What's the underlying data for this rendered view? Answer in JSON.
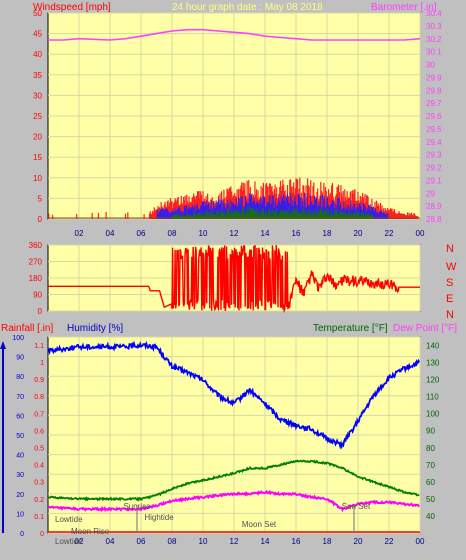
{
  "header": {
    "wind_label": "Windspeed [mph]",
    "title": "24 hour graph date : May 08 2018",
    "baro_label": "Barometer [.in]"
  },
  "middle": {
    "compass": [
      "N",
      "W",
      "S",
      "E",
      "N"
    ]
  },
  "bottom": {
    "rain_label": "Rainfall [.in]",
    "humidity_label": "Humidity [%]",
    "temp_label": "Temperature [°F]",
    "dew_label": "Dew Point [°F]"
  },
  "colors": {
    "background": "#c0c0c0",
    "plot_bg": "#ffffa8",
    "wind_gust": "#ff2020",
    "wind_avg": "#2020ff",
    "wind_low": "#008000",
    "barometer": "#ff40ff",
    "wind_dir": "#ff0000",
    "humidity": "#0000ff",
    "temperature": "#008000",
    "dewpoint": "#ff00ff",
    "title": "#ffff80",
    "header_red": "#ff0000",
    "bottom_blue": "#0000cc",
    "bottom_green": "#006600"
  },
  "chart_data": [
    {
      "type": "area",
      "x_ticks": [
        "02",
        "04",
        "06",
        "08",
        "10",
        "12",
        "14",
        "16",
        "18",
        "20",
        "22",
        "00"
      ],
      "left_axis": {
        "ylim": [
          0,
          50
        ],
        "ticks": [
          "0",
          "5",
          "10",
          "15",
          "20",
          "25",
          "30",
          "35",
          "40",
          "45",
          "50"
        ]
      },
      "right_axis": {
        "ylim": [
          28.8,
          30.4
        ],
        "ticks": [
          "28.8",
          "28.9",
          "29",
          "29.1",
          "29.2",
          "29.3",
          "29.4",
          "29.5",
          "29.6",
          "29.7",
          "29.8",
          "29.9",
          "30",
          "30.1",
          "30.2",
          "30.3",
          "30.4"
        ]
      },
      "series": [
        {
          "values": [
            [
              0,
              0.5
            ],
            [
              1.5,
              0.3
            ],
            [
              3,
              0.2
            ],
            [
              5,
              0.6
            ],
            [
              6.5,
              1.5
            ],
            [
              7.5,
              4
            ],
            [
              8.5,
              5
            ],
            [
              10,
              6
            ],
            [
              11,
              5.5
            ],
            [
              12,
              7
            ],
            [
              13,
              8
            ],
            [
              14,
              7.5
            ],
            [
              15,
              8
            ],
            [
              16,
              9
            ],
            [
              17,
              8
            ],
            [
              18,
              7.5
            ],
            [
              19,
              7
            ],
            [
              20,
              6
            ],
            [
              21,
              4
            ],
            [
              22,
              2.5
            ],
            [
              23,
              1.5
            ],
            [
              24,
              1
            ]
          ]
        },
        {
          "values": [
            [
              7,
              2
            ],
            [
              9,
              3
            ],
            [
              10,
              3.5
            ],
            [
              12,
              4.5
            ],
            [
              13,
              5
            ],
            [
              14,
              4.5
            ],
            [
              15,
              5
            ],
            [
              16,
              5.5
            ],
            [
              17,
              5
            ],
            [
              18,
              4.5
            ],
            [
              19,
              4
            ],
            [
              20,
              3.5
            ],
            [
              21,
              2.5
            ],
            [
              22,
              1.5
            ]
          ]
        },
        {
          "values": [
            [
              8,
              1
            ],
            [
              10,
              1.5
            ],
            [
              12,
              2
            ],
            [
              13,
              2.5
            ],
            [
              14,
              2
            ],
            [
              16,
              2.5
            ],
            [
              17,
              2
            ],
            [
              18,
              2
            ],
            [
              20,
              1.5
            ],
            [
              21,
              1
            ]
          ]
        },
        {
          "values": [
            [
              0,
              30.19
            ],
            [
              1,
              30.19
            ],
            [
              2,
              30.2
            ],
            [
              4,
              30.19
            ],
            [
              5,
              30.2
            ],
            [
              6,
              30.22
            ],
            [
              7,
              30.24
            ],
            [
              8,
              30.26
            ],
            [
              9,
              30.27
            ],
            [
              10,
              30.27
            ],
            [
              11,
              30.26
            ],
            [
              12,
              30.25
            ],
            [
              13,
              30.24
            ],
            [
              14,
              30.22
            ],
            [
              15,
              30.21
            ],
            [
              16,
              30.2
            ],
            [
              17,
              30.19
            ],
            [
              18,
              30.19
            ],
            [
              19,
              30.19
            ],
            [
              20,
              30.19
            ],
            [
              21,
              30.19
            ],
            [
              22,
              30.19
            ],
            [
              23,
              30.19
            ],
            [
              24,
              30.2
            ]
          ]
        }
      ]
    },
    {
      "type": "line",
      "left_axis": {
        "ylim": [
          0,
          360
        ],
        "ticks": [
          "0",
          "90",
          "180",
          "270",
          "360"
        ]
      },
      "series": [
        {
          "values": [
            [
              0,
              135
            ],
            [
              6.5,
              135
            ],
            [
              6.6,
              110
            ],
            [
              7.2,
              110
            ],
            [
              7.3,
              80
            ],
            [
              7.5,
              20
            ],
            [
              8,
              40
            ],
            [
              8.2,
              300
            ],
            [
              8.4,
              20
            ],
            [
              8.6,
              360
            ],
            [
              8.8,
              10
            ],
            [
              9.2,
              350
            ],
            [
              9.5,
              5
            ],
            [
              10,
              330
            ],
            [
              10.3,
              30
            ],
            [
              10.6,
              340
            ],
            [
              11,
              90
            ],
            [
              11.5,
              300
            ],
            [
              12,
              40
            ],
            [
              12.4,
              360
            ],
            [
              12.8,
              15
            ],
            [
              13,
              200
            ],
            [
              13.5,
              80
            ],
            [
              14,
              330
            ],
            [
              14.2,
              40
            ],
            [
              14.5,
              290
            ],
            [
              15,
              120
            ],
            [
              15.2,
              360
            ],
            [
              15.5,
              20
            ],
            [
              16,
              170
            ],
            [
              16.5,
              90
            ],
            [
              17,
              200
            ],
            [
              17.5,
              120
            ],
            [
              18,
              190
            ],
            [
              18.5,
              140
            ],
            [
              19,
              170
            ],
            [
              20,
              160
            ],
            [
              21,
              150
            ],
            [
              22,
              145
            ],
            [
              22.6,
              130
            ],
            [
              24,
              130
            ]
          ]
        }
      ]
    },
    {
      "type": "line",
      "x_ticks": [
        "02",
        "04",
        "06",
        "08",
        "10",
        "12",
        "14",
        "16",
        "18",
        "20",
        "22",
        "00"
      ],
      "left_ticks": [
        "0",
        "10",
        "20",
        "30",
        "40",
        "50",
        "60",
        "70",
        "80",
        "90",
        "100"
      ],
      "left_inner_ticks": [
        "0",
        "0.1",
        "0.2",
        "0.3",
        "0.4",
        "0.5",
        "0.6",
        "0.7",
        "0.8",
        "0.9",
        "1",
        "1.1"
      ],
      "right_axis": {
        "ylim": [
          30,
          145
        ],
        "ticks": [
          "40",
          "50",
          "60",
          "70",
          "80",
          "90",
          "100",
          "110",
          "120",
          "130",
          "140"
        ]
      },
      "annotations": [
        "Lowtide",
        "Moon Rise",
        "Sunrise",
        "Hightide",
        "Moon Set",
        "Sun Set",
        "Lowtide"
      ],
      "series": [
        {
          "values": [
            [
              0,
              93
            ],
            [
              1,
              94
            ],
            [
              2,
              95
            ],
            [
              3,
              95
            ],
            [
              4,
              95
            ],
            [
              5,
              95
            ],
            [
              6,
              96
            ],
            [
              7,
              95
            ],
            [
              8,
              85
            ],
            [
              9,
              82
            ],
            [
              10,
              78
            ],
            [
              11,
              70
            ],
            [
              12,
              66
            ],
            [
              13,
              73
            ],
            [
              14,
              66
            ],
            [
              15,
              58
            ],
            [
              16,
              55
            ],
            [
              17,
              53
            ],
            [
              18,
              48
            ],
            [
              19,
              45
            ],
            [
              20,
              57
            ],
            [
              21,
              70
            ],
            [
              22,
              79
            ],
            [
              23,
              84
            ],
            [
              24,
              87
            ]
          ]
        },
        {
          "values": [
            [
              0,
              51
            ],
            [
              2,
              50
            ],
            [
              4,
              50
            ],
            [
              6,
              50
            ],
            [
              7,
              52
            ],
            [
              8,
              56
            ],
            [
              9,
              59
            ],
            [
              10,
              61
            ],
            [
              11,
              63
            ],
            [
              12,
              65
            ],
            [
              13,
              68
            ],
            [
              14,
              68
            ],
            [
              15,
              70
            ],
            [
              16,
              72
            ],
            [
              17,
              72
            ],
            [
              18,
              71
            ],
            [
              19,
              68
            ],
            [
              20,
              63
            ],
            [
              21,
              60
            ],
            [
              22,
              57
            ],
            [
              23,
              54
            ],
            [
              24,
              52
            ]
          ]
        },
        {
          "values": [
            [
              0,
              45
            ],
            [
              2,
              44
            ],
            [
              4,
              44
            ],
            [
              6,
              44
            ],
            [
              7,
              46
            ],
            [
              8,
              49
            ],
            [
              9,
              50
            ],
            [
              10,
              51
            ],
            [
              11,
              52
            ],
            [
              12,
              53
            ],
            [
              13,
              53
            ],
            [
              14,
              54
            ],
            [
              15,
              53
            ],
            [
              16,
              53
            ],
            [
              17,
              51
            ],
            [
              18,
              50
            ],
            [
              19,
              44
            ],
            [
              20,
              47
            ],
            [
              21,
              48
            ],
            [
              22,
              48
            ],
            [
              23,
              47
            ],
            [
              24,
              46
            ]
          ]
        }
      ]
    }
  ]
}
